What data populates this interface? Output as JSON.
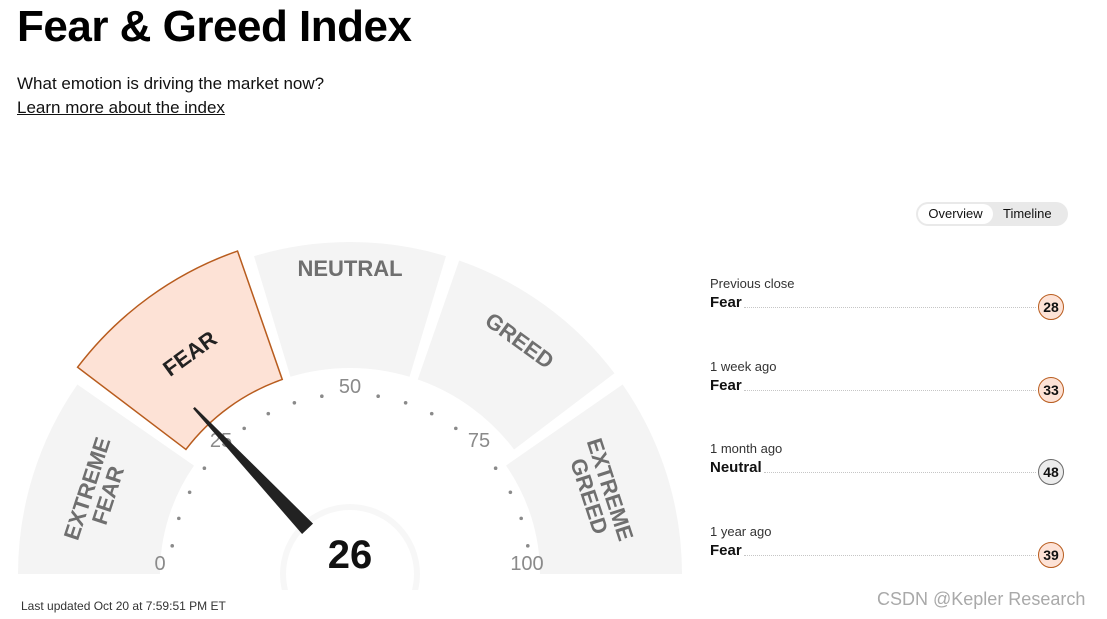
{
  "page": {
    "title": "Fear & Greed Index",
    "subtitle": "What emotion is driving the market now?",
    "learn_more": "Learn more about the index"
  },
  "gauge": {
    "value": 26,
    "value_label": "26",
    "segments": [
      "EXTREME FEAR",
      "FEAR",
      "NEUTRAL",
      "GREED",
      "EXTREME GREED"
    ],
    "active_segment": "FEAR",
    "ticks": [
      "0",
      "25",
      "50",
      "75",
      "100"
    ],
    "colors": {
      "active_fill": "#fde2d6",
      "active_border": "#b85c1e",
      "inactive": "#f4f4f4",
      "needle": "#222222"
    }
  },
  "toggle": {
    "overview": "Overview",
    "timeline": "Timeline",
    "selected": "Overview"
  },
  "history": [
    {
      "label": "Previous close",
      "sentiment": "Fear",
      "value": "28",
      "kind": "fear"
    },
    {
      "label": "1 week ago",
      "sentiment": "Fear",
      "value": "33",
      "kind": "fear"
    },
    {
      "label": "1 month ago",
      "sentiment": "Neutral",
      "value": "48",
      "kind": "neutral"
    },
    {
      "label": "1 year ago",
      "sentiment": "Fear",
      "value": "39",
      "kind": "fear"
    }
  ],
  "footer": {
    "last_updated": "Last updated Oct 20 at 7:59:51 PM ET",
    "watermark": "CSDN @Kepler Research"
  }
}
